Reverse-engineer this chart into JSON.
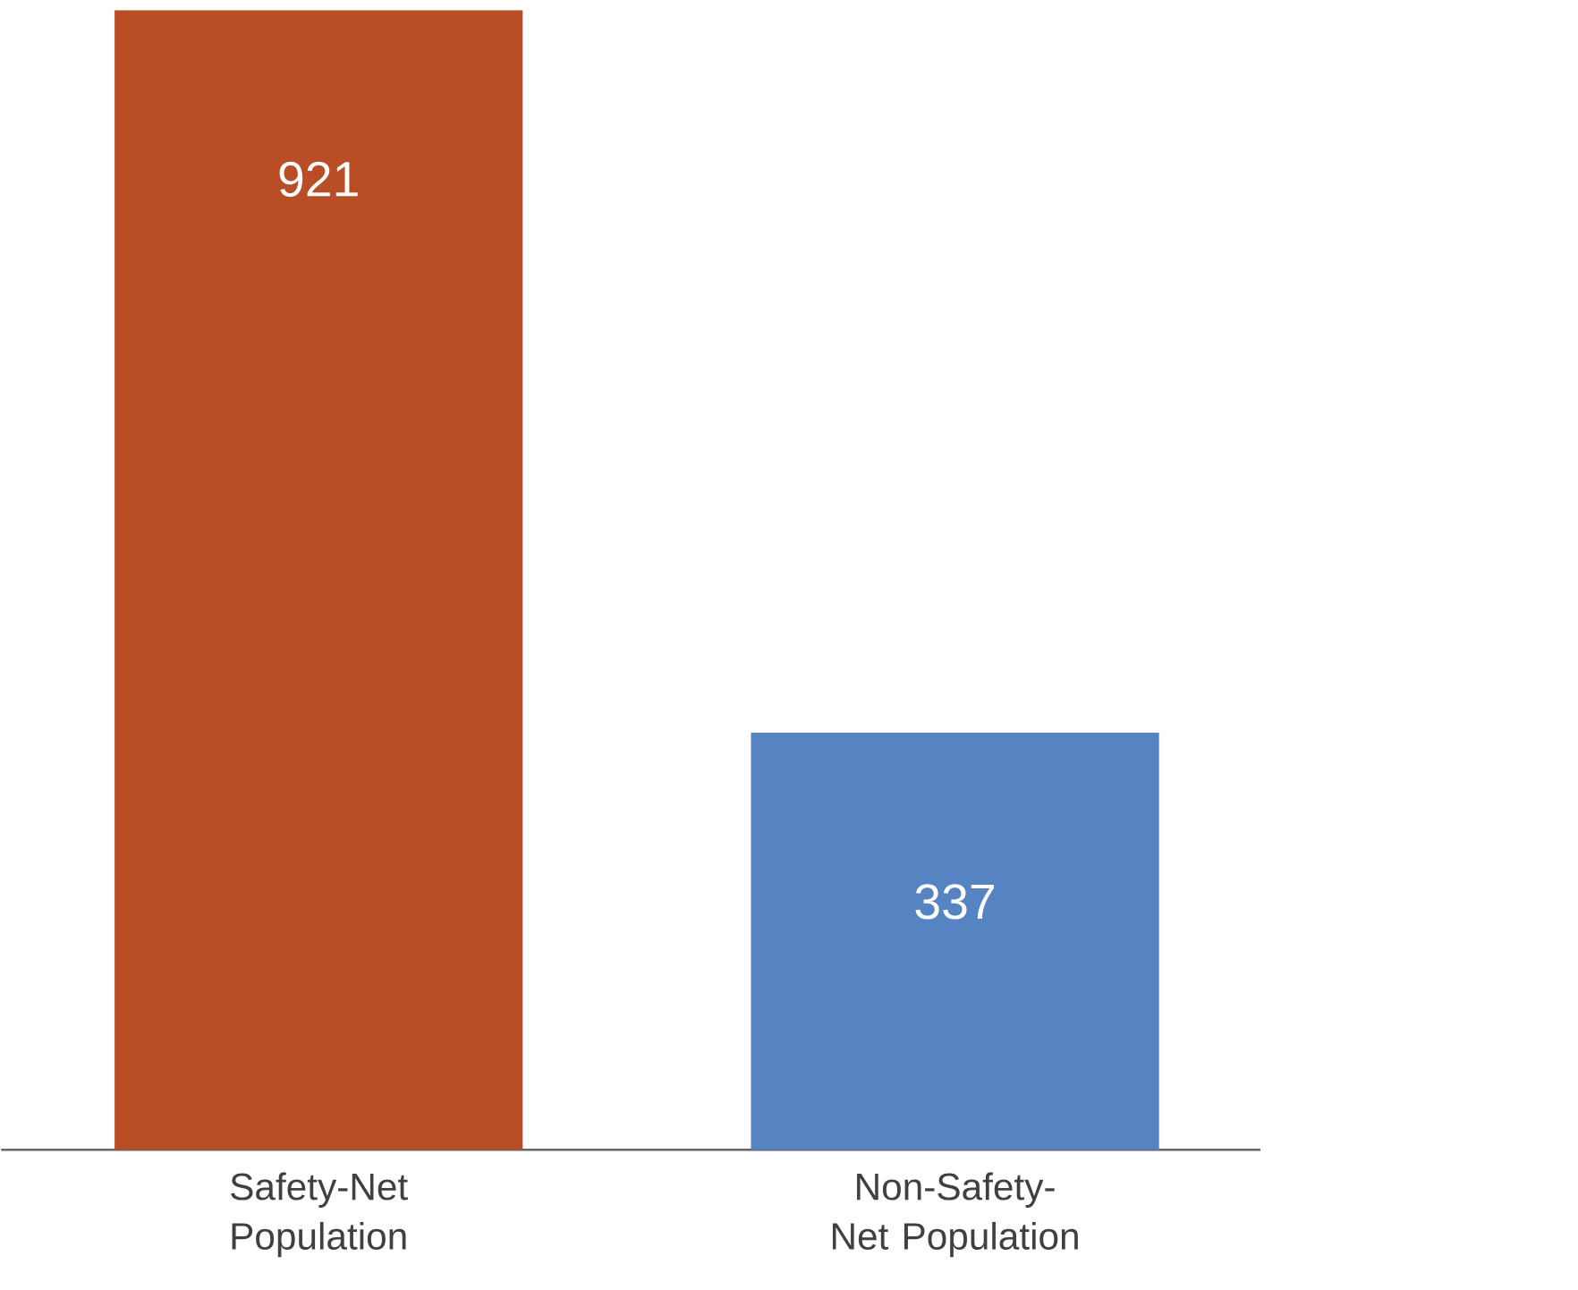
{
  "chart_data": {
    "type": "bar",
    "categories": [
      "Safety-Net Population",
      "Non-Safety-Net Population"
    ],
    "values": [
      921,
      337
    ],
    "colors": [
      "#b84d26",
      "#5683c2"
    ],
    "data_labels": true
  }
}
